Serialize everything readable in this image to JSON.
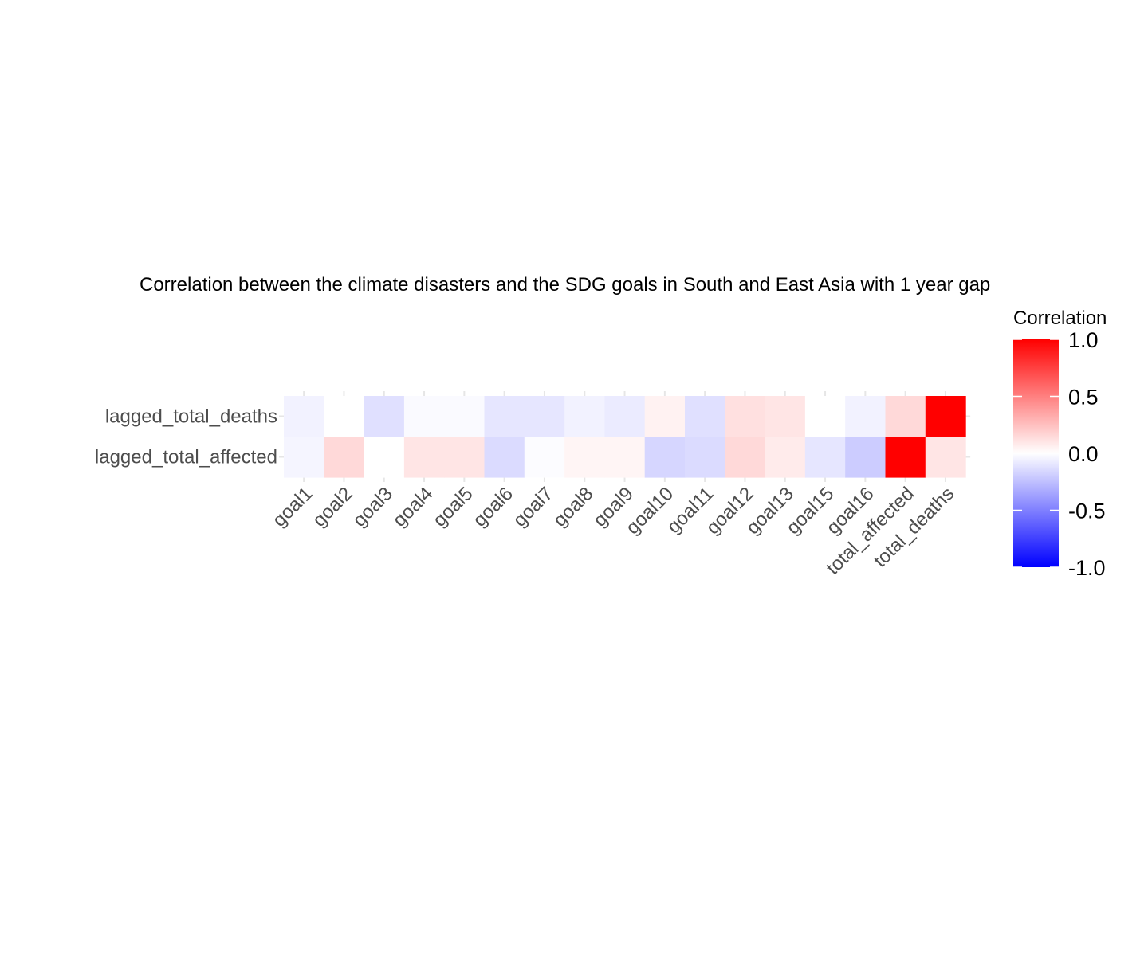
{
  "chart_data": {
    "type": "heatmap",
    "title": "Correlation between the climate disasters and the SDG goals in South and East Asia with 1 year gap",
    "xlabel": "",
    "ylabel": "",
    "x_categories": [
      "goal1",
      "goal2",
      "goal3",
      "goal4",
      "goal5",
      "goal6",
      "goal7",
      "goal8",
      "goal9",
      "goal10",
      "goal11",
      "goal12",
      "goal13",
      "goal15",
      "goal16",
      "total_affected",
      "total_deaths"
    ],
    "y_categories": [
      "lagged_total_deaths",
      "lagged_total_affected"
    ],
    "values": [
      [
        -0.05,
        0.0,
        -0.12,
        -0.02,
        -0.02,
        -0.1,
        -0.1,
        -0.05,
        -0.08,
        0.05,
        -0.12,
        0.12,
        0.1,
        0.0,
        -0.05,
        0.15,
        1.0
      ],
      [
        -0.04,
        0.15,
        0.0,
        0.1,
        0.1,
        -0.14,
        -0.01,
        0.04,
        0.04,
        -0.16,
        -0.14,
        0.15,
        0.08,
        -0.1,
        -0.2,
        1.0,
        0.1
      ]
    ],
    "color_scale": {
      "low": "#0000ff",
      "mid": "#ffffff",
      "high": "#ff0000",
      "limits": [
        -1.0,
        1.0
      ]
    },
    "legend": {
      "title": "Correlation",
      "placement": "right",
      "ticks": [
        1.0,
        0.5,
        0.0,
        -0.5,
        -1.0
      ],
      "tick_labels": [
        "1.0",
        "0.5",
        "0.0",
        "-0.5",
        "-1.0"
      ]
    },
    "grid": true
  }
}
